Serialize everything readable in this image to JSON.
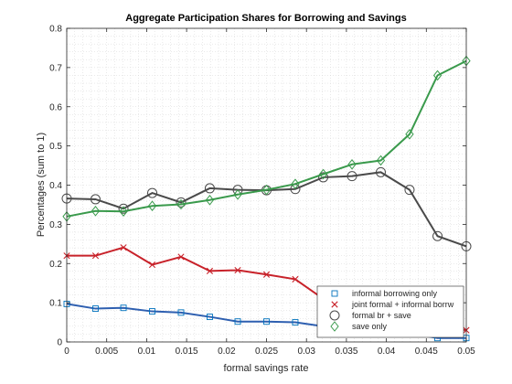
{
  "chart_data": {
    "type": "line",
    "title": "Aggregate Participation Shares for Borrowing and Savings",
    "xlabel": "formal savings rate",
    "ylabel": "Percentages (sum to 1)",
    "xlim": [
      0,
      0.05
    ],
    "ylim": [
      0,
      0.8
    ],
    "xticks": [
      "0",
      "0.005",
      "0.01",
      "0.015",
      "0.02",
      "0.025",
      "0.03",
      "0.035",
      "0.04",
      "0.045",
      "0.05"
    ],
    "yticks": [
      "0",
      "0.1",
      "0.2",
      "0.3",
      "0.4",
      "0.5",
      "0.6",
      "0.7",
      "0.8"
    ],
    "grid": "minor dotted",
    "legend_position": "bottom-right",
    "x": [
      0,
      0.0036,
      0.0071,
      0.0107,
      0.0143,
      0.0179,
      0.0214,
      0.025,
      0.0286,
      0.0321,
      0.0357,
      0.0393,
      0.0429,
      0.0464,
      0.05
    ],
    "series": [
      {
        "name": "informal borrowing only",
        "marker": "square",
        "line_color": "#2e5fb0",
        "marker_color": "#0072bd",
        "values": [
          0.097,
          0.085,
          0.087,
          0.078,
          0.075,
          0.064,
          0.052,
          0.052,
          0.05,
          0.04,
          0.03,
          0.025,
          0.022,
          0.01,
          0.01
        ]
      },
      {
        "name": "joint formal + informal borrw",
        "marker": "x",
        "line_color": "#c8222a",
        "marker_color": "#c8222a",
        "values": [
          0.22,
          0.22,
          0.241,
          0.197,
          0.217,
          0.181,
          0.183,
          0.172,
          0.16,
          0.11,
          0.095,
          0.08,
          0.062,
          0.04,
          0.03
        ]
      },
      {
        "name": "formal br + save",
        "marker": "circle",
        "line_color": "#4a4a4a",
        "marker_color": "#4a4a4a",
        "values": [
          0.366,
          0.364,
          0.34,
          0.38,
          0.356,
          0.392,
          0.388,
          0.387,
          0.39,
          0.42,
          0.423,
          0.433,
          0.388,
          0.27,
          0.244
        ]
      },
      {
        "name": "save only",
        "marker": "diamond",
        "line_color": "#3a9a4c",
        "marker_color": "#3a9a4c",
        "values": [
          0.32,
          0.334,
          0.333,
          0.347,
          0.351,
          0.362,
          0.376,
          0.388,
          0.403,
          0.428,
          0.453,
          0.463,
          0.53,
          0.68,
          0.717
        ]
      }
    ]
  }
}
